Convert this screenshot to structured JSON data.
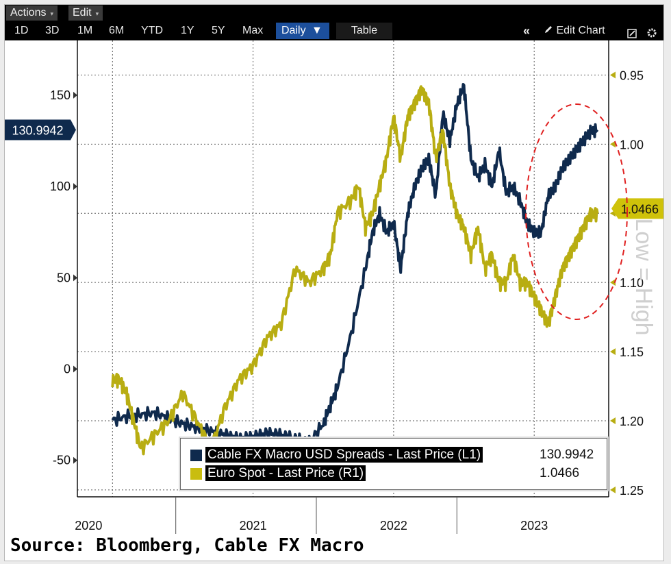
{
  "toolbar": {
    "actions_label": "Actions",
    "edit_label": "Edit",
    "ranges": [
      "1D",
      "3D",
      "1M",
      "6M",
      "YTD",
      "1Y",
      "5Y",
      "Max"
    ],
    "frequency_label": "Daily",
    "table_label": "Table",
    "collapse_icon": "double-chevron-left-icon",
    "edit_chart_label": "Edit Chart",
    "edit_icon": "pencil-icon",
    "settings_icon": "settings-icon",
    "gear_icon": "gear-icon"
  },
  "chart_data": {
    "type": "line",
    "x_labels": [
      "2020",
      "2021",
      "2022",
      "2023"
    ],
    "left_axis": {
      "ticks": [
        -50,
        0,
        50,
        100,
        150
      ],
      "range": [
        -70,
        180
      ]
    },
    "right_axis": {
      "ticks": [
        "0.95",
        "1.00",
        "1.05",
        "1.10",
        "1.15",
        "1.20",
        "1.25"
      ],
      "range": [
        0.925,
        1.255
      ],
      "inverted": true,
      "label": "Low = High"
    },
    "left_current_label": "130.9942",
    "right_current_label": "1.0466",
    "annotation": "red dashed ellipse highlighting late-2022 to 2023 rebound",
    "series": [
      {
        "name": "Cable FX Macro USD Spreads - Last Price (L1)",
        "axis": "left",
        "color": "#0f2a4d",
        "last": "130.9942",
        "x": [
          2020.0,
          2020.1,
          2020.2,
          2020.3,
          2020.4,
          2020.5,
          2020.6,
          2020.7,
          2020.8,
          2020.9,
          2021.0,
          2021.1,
          2021.2,
          2021.3,
          2021.4,
          2021.5,
          2021.55,
          2021.6,
          2021.7,
          2021.8,
          2021.85,
          2021.9,
          2021.95,
          2022.0,
          2022.05,
          2022.1,
          2022.15,
          2022.2,
          2022.25,
          2022.3,
          2022.35,
          2022.4,
          2022.45,
          2022.5,
          2022.55,
          2022.6,
          2022.65,
          2022.7,
          2022.75,
          2022.8,
          2022.85,
          2022.9,
          2022.95,
          2023.0,
          2023.05,
          2023.1,
          2023.15,
          2023.2,
          2023.25,
          2023.3,
          2023.35,
          2023.4,
          2023.45
        ],
        "y": [
          -28,
          -26,
          -25,
          -24,
          -27,
          -30,
          -32,
          -34,
          -36,
          -38,
          -37,
          -35,
          -36,
          -38,
          -40,
          -30,
          -20,
          -10,
          20,
          55,
          75,
          85,
          75,
          80,
          55,
          85,
          100,
          110,
          115,
          95,
          140,
          125,
          145,
          155,
          115,
          105,
          112,
          100,
          120,
          97,
          100,
          92,
          80,
          75,
          75,
          95,
          100,
          110,
          115,
          120,
          125,
          130,
          131
        ]
      },
      {
        "name": "Euro Spot - Last Price (R1)",
        "axis": "right",
        "color": "#b8ad12",
        "last": "1.0466",
        "x": [
          2020.0,
          2020.05,
          2020.1,
          2020.15,
          2020.2,
          2020.3,
          2020.4,
          2020.5,
          2020.6,
          2020.7,
          2020.8,
          2020.9,
          2021.0,
          2021.1,
          2021.2,
          2021.3,
          2021.4,
          2021.5,
          2021.55,
          2021.6,
          2021.7,
          2021.75,
          2021.8,
          2021.85,
          2021.9,
          2021.95,
          2022.0,
          2022.05,
          2022.1,
          2022.15,
          2022.2,
          2022.25,
          2022.3,
          2022.35,
          2022.4,
          2022.45,
          2022.5,
          2022.55,
          2022.6,
          2022.65,
          2022.7,
          2022.75,
          2022.8,
          2022.85,
          2022.9,
          2022.95,
          2023.0,
          2023.05,
          2023.1,
          2023.15,
          2023.2,
          2023.25,
          2023.3,
          2023.35,
          2023.4,
          2023.45
        ],
        "y": [
          1.17,
          1.17,
          1.18,
          1.2,
          1.22,
          1.21,
          1.2,
          1.18,
          1.2,
          1.22,
          1.19,
          1.17,
          1.16,
          1.14,
          1.13,
          1.09,
          1.1,
          1.09,
          1.08,
          1.05,
          1.04,
          1.03,
          1.06,
          1.05,
          1.03,
          1.01,
          0.98,
          1.01,
          0.98,
          0.97,
          0.96,
          0.97,
          1.01,
          0.99,
          1.03,
          1.05,
          1.06,
          1.08,
          1.06,
          1.09,
          1.08,
          1.1,
          1.1,
          1.08,
          1.1,
          1.1,
          1.11,
          1.12,
          1.13,
          1.11,
          1.09,
          1.08,
          1.07,
          1.06,
          1.05,
          1.05
        ]
      }
    ]
  },
  "source_text": "Source: Bloomberg, Cable FX Macro",
  "colors": {
    "axis": "#111111",
    "grid": "#5a5a5a",
    "left_series": "#0f2a4d",
    "right_series": "#b8ad12",
    "annotation": "#e02020",
    "label_bg_left": "#0f2a4d",
    "label_bg_right": "#cfc20a"
  }
}
